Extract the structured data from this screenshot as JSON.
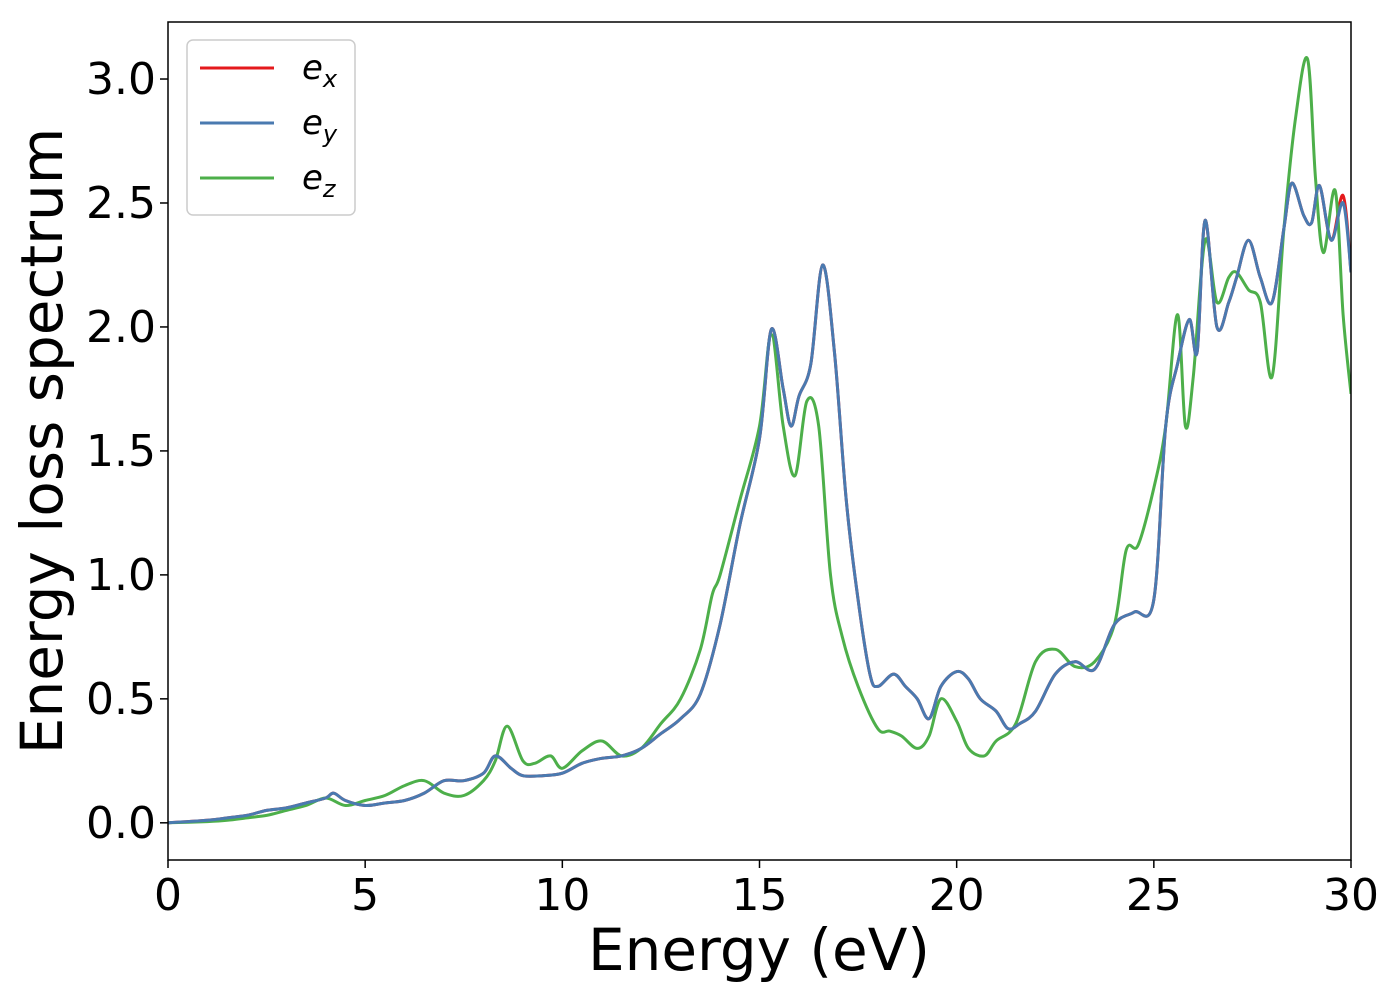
{
  "chart_data": {
    "type": "line",
    "title": "",
    "xlabel": "Energy (eV)",
    "ylabel": "Energy loss spectrum",
    "xlim": [
      0,
      30
    ],
    "ylim": [
      -0.15,
      3.23
    ],
    "xticks": [
      0,
      5,
      10,
      15,
      20,
      25,
      30
    ],
    "xtick_labels": [
      "0",
      "5",
      "10",
      "15",
      "20",
      "25",
      "30"
    ],
    "yticks": [
      0.0,
      0.5,
      1.0,
      1.5,
      2.0,
      2.5,
      3.0
    ],
    "ytick_labels": [
      "0.0",
      "0.5",
      "1.0",
      "1.5",
      "2.0",
      "2.5",
      "3.0"
    ],
    "grid": false,
    "legend_position": "top-left",
    "series": [
      {
        "name": "e",
        "subscript": "x",
        "color": "#e41a1c",
        "x": [
          0,
          1,
          1.5,
          2,
          2.5,
          3,
          3.5,
          4,
          4.2,
          4.5,
          5,
          5.5,
          6,
          6.5,
          7,
          7.5,
          8,
          8.3,
          8.7,
          9,
          9.5,
          10,
          10.5,
          11,
          11.5,
          12,
          12.5,
          13,
          13.5,
          14,
          14.5,
          15,
          15.3,
          15.6,
          15.8,
          16,
          16.3,
          16.6,
          16.9,
          17.2,
          17.5,
          17.8,
          18,
          18.4,
          18.7,
          19,
          19.3,
          19.6,
          20,
          20.3,
          20.6,
          21,
          21.3,
          21.6,
          22,
          22.5,
          23,
          23.5,
          24,
          24.5,
          25,
          25.3,
          25.6,
          25.9,
          26.1,
          26.3,
          26.6,
          26.9,
          27.1,
          27.4,
          27.7,
          28,
          28.3,
          28.5,
          28.8,
          29,
          29.2,
          29.5,
          29.8,
          30
        ],
        "y": [
          0,
          0.01,
          0.02,
          0.03,
          0.05,
          0.06,
          0.08,
          0.1,
          0.12,
          0.09,
          0.07,
          0.08,
          0.09,
          0.12,
          0.17,
          0.17,
          0.2,
          0.27,
          0.22,
          0.19,
          0.19,
          0.2,
          0.24,
          0.26,
          0.27,
          0.3,
          0.36,
          0.42,
          0.52,
          0.8,
          1.2,
          1.55,
          1.99,
          1.75,
          1.6,
          1.72,
          1.85,
          2.25,
          1.9,
          1.3,
          0.9,
          0.6,
          0.55,
          0.6,
          0.55,
          0.5,
          0.42,
          0.55,
          0.61,
          0.58,
          0.5,
          0.45,
          0.38,
          0.4,
          0.45,
          0.6,
          0.65,
          0.62,
          0.8,
          0.85,
          0.9,
          1.6,
          1.85,
          2.03,
          1.9,
          2.43,
          2.0,
          2.1,
          2.2,
          2.35,
          2.2,
          2.1,
          2.4,
          2.58,
          2.45,
          2.42,
          2.57,
          2.35,
          2.53,
          2.22
        ]
      },
      {
        "name": "e",
        "subscript": "y",
        "color": "#4a7ab0",
        "x": [
          0,
          1,
          1.5,
          2,
          2.5,
          3,
          3.5,
          4,
          4.2,
          4.5,
          5,
          5.5,
          6,
          6.5,
          7,
          7.5,
          8,
          8.3,
          8.7,
          9,
          9.5,
          10,
          10.5,
          11,
          11.5,
          12,
          12.5,
          13,
          13.5,
          14,
          14.5,
          15,
          15.3,
          15.6,
          15.8,
          16,
          16.3,
          16.6,
          16.9,
          17.2,
          17.5,
          17.8,
          18,
          18.4,
          18.7,
          19,
          19.3,
          19.6,
          20,
          20.3,
          20.6,
          21,
          21.3,
          21.6,
          22,
          22.5,
          23,
          23.5,
          24,
          24.5,
          25,
          25.3,
          25.6,
          25.9,
          26.1,
          26.3,
          26.6,
          26.9,
          27.1,
          27.4,
          27.7,
          28,
          28.3,
          28.5,
          28.8,
          29,
          29.2,
          29.5,
          29.8,
          30
        ],
        "y": [
          0,
          0.01,
          0.02,
          0.03,
          0.05,
          0.06,
          0.08,
          0.1,
          0.12,
          0.09,
          0.07,
          0.08,
          0.09,
          0.12,
          0.17,
          0.17,
          0.2,
          0.27,
          0.22,
          0.19,
          0.19,
          0.2,
          0.24,
          0.26,
          0.27,
          0.3,
          0.36,
          0.42,
          0.52,
          0.8,
          1.2,
          1.55,
          1.99,
          1.75,
          1.6,
          1.72,
          1.85,
          2.25,
          1.9,
          1.3,
          0.9,
          0.6,
          0.55,
          0.6,
          0.55,
          0.5,
          0.42,
          0.55,
          0.61,
          0.58,
          0.5,
          0.45,
          0.38,
          0.4,
          0.45,
          0.6,
          0.65,
          0.62,
          0.8,
          0.85,
          0.9,
          1.6,
          1.85,
          2.03,
          1.9,
          2.43,
          2.0,
          2.1,
          2.2,
          2.35,
          2.2,
          2.1,
          2.4,
          2.58,
          2.45,
          2.42,
          2.57,
          2.35,
          2.5,
          2.22
        ]
      },
      {
        "name": "e",
        "subscript": "z",
        "color": "#4daf4a",
        "x": [
          0,
          1,
          1.5,
          2,
          2.5,
          3,
          3.5,
          4,
          4.5,
          5,
          5.5,
          6,
          6.5,
          7,
          7.5,
          8,
          8.3,
          8.6,
          9,
          9.3,
          9.7,
          10,
          10.5,
          11,
          11.5,
          12,
          12.5,
          13,
          13.5,
          13.8,
          14,
          14.5,
          15,
          15.3,
          15.6,
          15.9,
          16.2,
          16.5,
          16.8,
          17.1,
          17.5,
          18,
          18.3,
          18.6,
          19,
          19.3,
          19.6,
          20,
          20.3,
          20.7,
          21,
          21.5,
          22,
          22.5,
          23,
          23.5,
          24,
          24.3,
          24.6,
          25,
          25.3,
          25.6,
          25.8,
          26,
          26.3,
          26.6,
          26.9,
          27.1,
          27.4,
          27.7,
          28,
          28.3,
          28.6,
          28.9,
          29.1,
          29.3,
          29.6,
          29.8,
          30
        ],
        "y": [
          0,
          0.005,
          0.01,
          0.02,
          0.03,
          0.05,
          0.07,
          0.1,
          0.07,
          0.09,
          0.11,
          0.15,
          0.17,
          0.12,
          0.11,
          0.17,
          0.25,
          0.39,
          0.25,
          0.24,
          0.27,
          0.22,
          0.29,
          0.33,
          0.27,
          0.3,
          0.4,
          0.5,
          0.7,
          0.92,
          1.0,
          1.3,
          1.6,
          1.97,
          1.6,
          1.4,
          1.7,
          1.6,
          1.0,
          0.75,
          0.55,
          0.38,
          0.37,
          0.35,
          0.3,
          0.35,
          0.5,
          0.41,
          0.3,
          0.27,
          0.33,
          0.4,
          0.65,
          0.7,
          0.63,
          0.65,
          0.8,
          1.1,
          1.12,
          1.35,
          1.6,
          2.05,
          1.6,
          1.8,
          2.35,
          2.1,
          2.2,
          2.22,
          2.15,
          2.1,
          1.8,
          2.4,
          2.85,
          3.08,
          2.6,
          2.3,
          2.55,
          2.05,
          1.73
        ]
      }
    ]
  }
}
